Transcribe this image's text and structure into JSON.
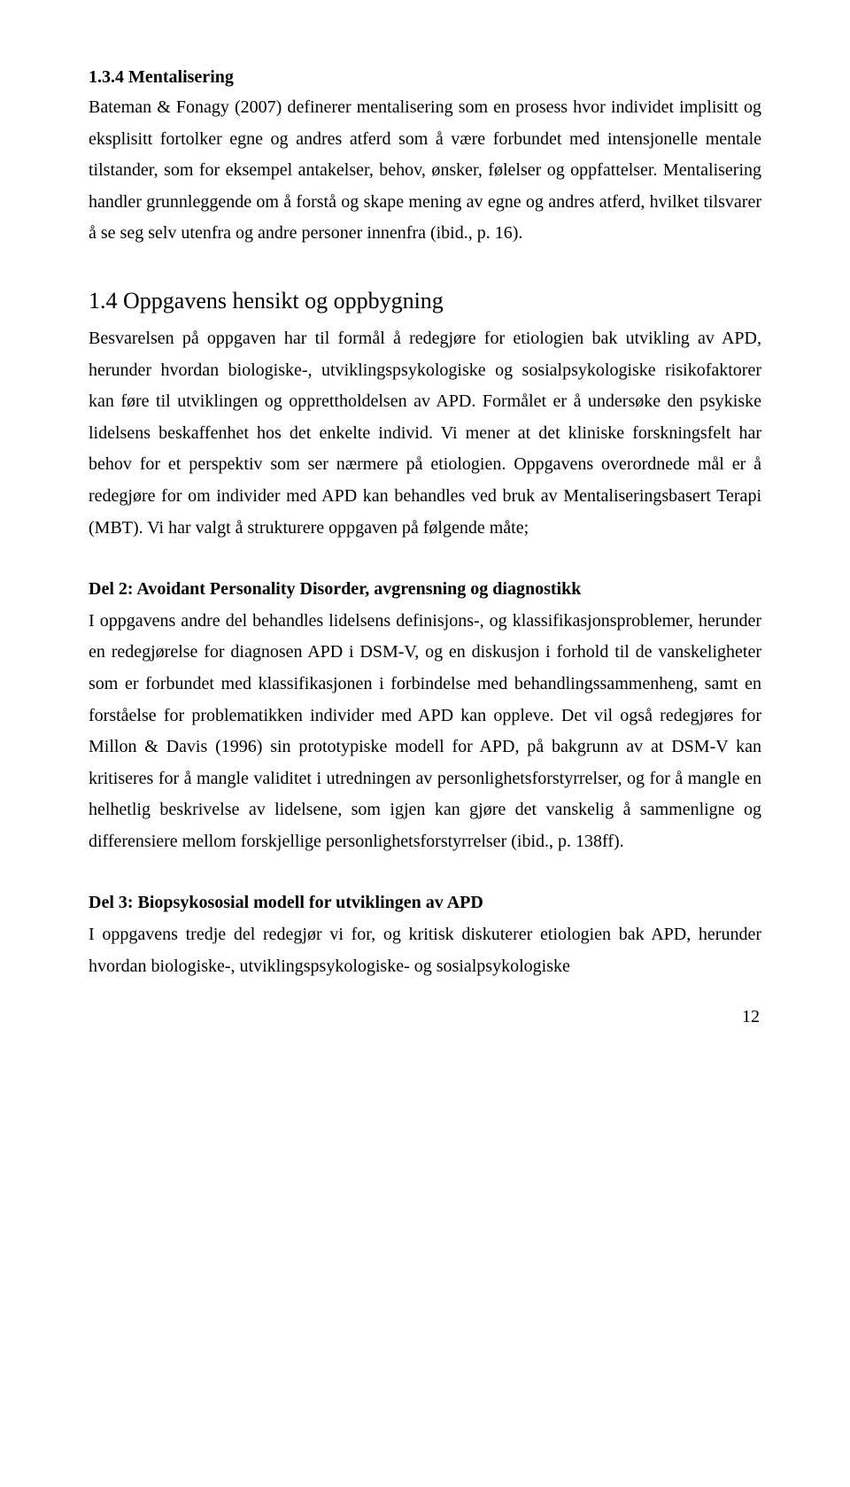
{
  "section_133": {
    "heading": "1.3.4 Mentalisering",
    "para": "Bateman & Fonagy (2007) definerer mentalisering som en prosess hvor individet implisitt og eksplisitt fortolker egne og andres atferd som å være forbundet med intensjonelle mentale tilstander, som for eksempel antakelser, behov, ønsker, følelser og oppfattelser. Mentalisering handler grunnleggende om å forstå og skape mening av egne og andres atferd, hvilket tilsvarer å se seg selv utenfra og andre personer innenfra (ibid., p. 16)."
  },
  "section_14": {
    "heading": "1.4 Oppgavens hensikt og oppbygning",
    "para1": "Besvarelsen på oppgaven har til formål å redegjøre for etiologien bak utvikling av APD, herunder hvordan biologiske-, utviklingspsykologiske og sosialpsykologiske risikofaktorer kan føre til utviklingen og opprettholdelsen av APD. Formålet er å undersøke den psykiske lidelsens beskaffenhet hos det enkelte individ. Vi mener at det kliniske forskningsfelt har behov for et perspektiv som ser nærmere på etiologien. Oppgavens overordnede mål er å redegjøre for om individer med APD kan behandles ved bruk av Mentaliseringsbasert Terapi (MBT). Vi har valgt å strukturere oppgaven på følgende måte;",
    "del2_heading": "Del 2: Avoidant Personality Disorder, avgrensning og diagnostikk",
    "del2_para": "I oppgavens andre del behandles lidelsens definisjons-, og klassifikasjonsproblemer, herunder en redegjørelse for diagnosen APD i DSM-V, og en diskusjon i forhold til de vanskeligheter som er forbundet med klassifikasjonen i forbindelse med behandlingssammenheng, samt en forståelse for problematikken individer med APD kan oppleve. Det vil også redegjøres for Millon & Davis (1996) sin prototypiske modell for APD, på bakgrunn av at DSM-V kan kritiseres for å mangle validitet i utredningen av personlighetsforstyrrelser, og for å mangle en helhetlig beskrivelse av lidelsene, som igjen kan gjøre det vanskelig å sammenligne og differensiere mellom forskjellige personlighetsforstyrrelser (ibid., p. 138ff).",
    "del3_heading": "Del 3: Biopsykososial modell for utviklingen av APD",
    "del3_para": "I oppgavens tredje del redegjør vi for, og kritisk diskuterer etiologien bak APD, herunder hvordan biologiske-, utviklingspsykologiske- og sosialpsykologiske"
  },
  "page_number": "12"
}
